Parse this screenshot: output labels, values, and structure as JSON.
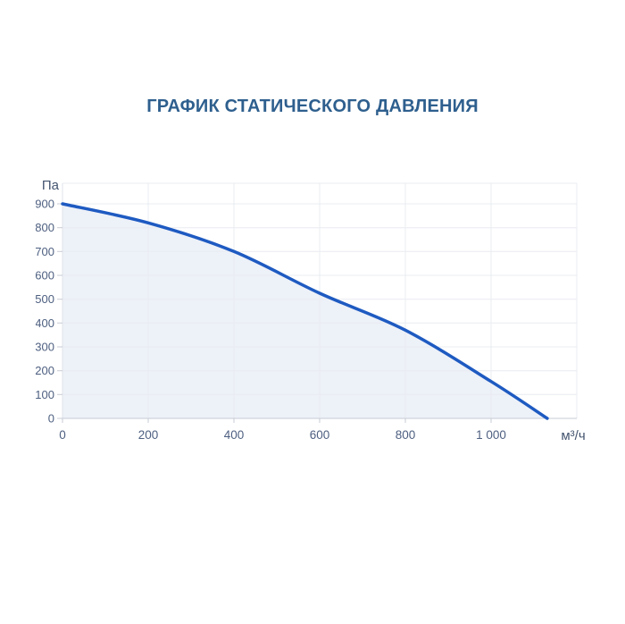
{
  "page": {
    "title": "ГРАФИК СТАТИЧЕСКОГО ДАВЛЕНИЯ"
  },
  "chart_data": {
    "type": "line",
    "title": "ГРАФИК СТАТИЧЕСКОГО ДАВЛЕНИЯ",
    "y_axis_unit": "Па",
    "x_axis_unit": "м³/ч",
    "x_tick_labels": [
      "0",
      "200",
      "400",
      "600",
      "800",
      "1 000"
    ],
    "x_tick_values": [
      0,
      200,
      400,
      600,
      800,
      1000
    ],
    "y_tick_values": [
      0,
      100,
      200,
      300,
      400,
      500,
      600,
      700,
      800,
      900
    ],
    "xlim": [
      0,
      1200
    ],
    "ylim": [
      0,
      985
    ],
    "grid": true,
    "legend": "none",
    "series": [
      {
        "name": "static-pressure-curve",
        "x": [
          0,
          200,
          400,
          600,
          800,
          1000,
          1131
        ],
        "y": [
          900,
          820,
          700,
          525,
          370,
          155,
          0
        ]
      }
    ],
    "colors": {
      "title": "#2e5f8e",
      "line": "#1e5ac1",
      "area_fill": "#edf1f8",
      "grid": "#e9ecf1",
      "axis_left": "#dfe3ea",
      "axis_bottom": "#c6cbd4",
      "tick": "#c6cbd4",
      "tick_label": "#4d5f80",
      "unit_label": "#44546f"
    }
  }
}
